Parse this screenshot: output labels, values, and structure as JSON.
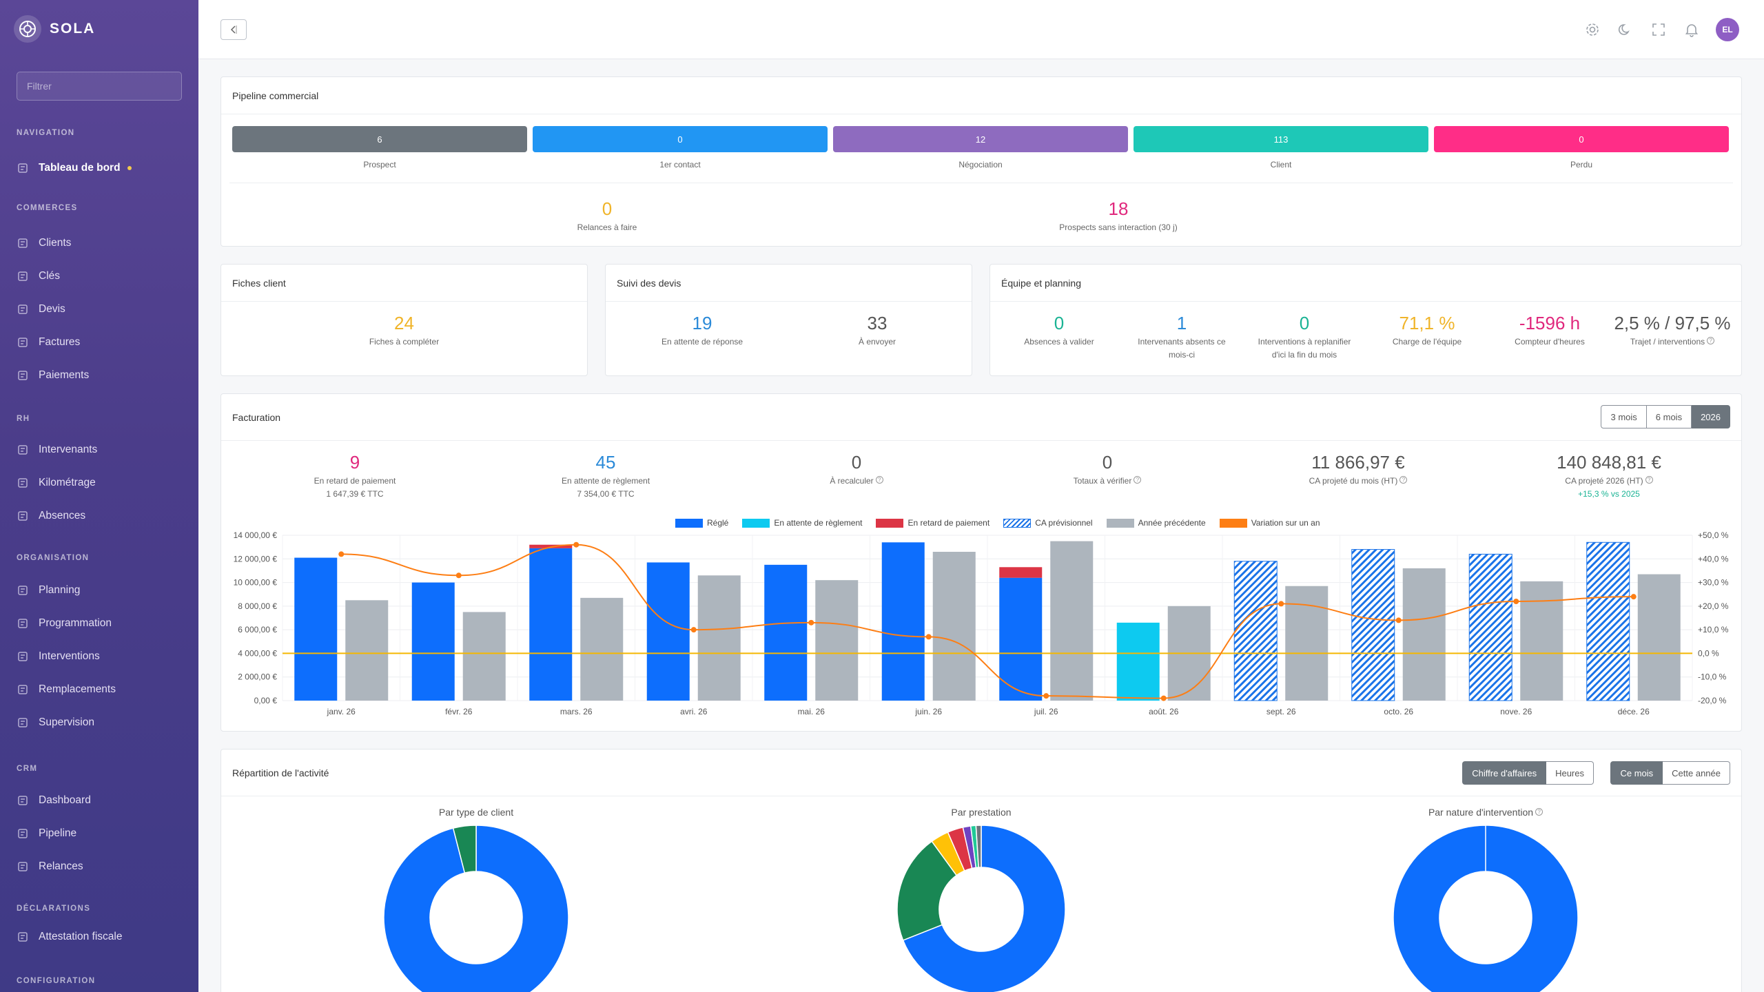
{
  "brand": {
    "name": "SOLA"
  },
  "sidebar": {
    "filter_placeholder": "Filtrer",
    "sections": [
      {
        "title": "NAVIGATION",
        "items": [
          {
            "label": "Tableau de bord",
            "icon": "dashboard-icon",
            "active": true
          }
        ]
      },
      {
        "title": "COMMERCES",
        "items": [
          {
            "label": "Clients",
            "icon": "user-icon"
          },
          {
            "label": "Clés",
            "icon": "key-icon"
          },
          {
            "label": "Devis",
            "icon": "document-icon"
          },
          {
            "label": "Factures",
            "icon": "invoice-icon"
          },
          {
            "label": "Paiements",
            "icon": "dollar-icon"
          }
        ]
      },
      {
        "title": "RH",
        "items": [
          {
            "label": "Intervenants",
            "icon": "users-icon"
          },
          {
            "label": "Kilométrage",
            "icon": "send-icon"
          },
          {
            "label": "Absences",
            "icon": "sun-icon"
          }
        ]
      },
      {
        "title": "ORGANISATION",
        "items": [
          {
            "label": "Planning",
            "icon": "calendar-icon"
          },
          {
            "label": "Programmation",
            "icon": "repeat-icon"
          },
          {
            "label": "Interventions",
            "icon": "clock-icon"
          },
          {
            "label": "Remplacements",
            "icon": "shuffle-icon"
          },
          {
            "label": "Supervision",
            "icon": "map-icon"
          }
        ]
      },
      {
        "title": "CRM",
        "items": [
          {
            "label": "Dashboard",
            "icon": "bar-chart-icon"
          },
          {
            "label": "Pipeline",
            "icon": "target-icon"
          },
          {
            "label": "Relances",
            "icon": "bell-icon"
          }
        ]
      },
      {
        "title": "DÉCLARATIONS",
        "items": [
          {
            "label": "Attestation fiscale",
            "icon": "award-icon"
          }
        ]
      },
      {
        "title": "CONFIGURATION",
        "items": []
      }
    ]
  },
  "topbar": {
    "avatar_initials": "EL"
  },
  "pipeline": {
    "title": "Pipeline commercial",
    "stages": [
      {
        "value": "6",
        "label": "Prospect",
        "color": "#6c757d"
      },
      {
        "value": "0",
        "label": "1er contact",
        "color": "#2196f3"
      },
      {
        "value": "12",
        "label": "Négociation",
        "color": "#8e6bbf"
      },
      {
        "value": "113",
        "label": "Client",
        "color": "#1ec8b7"
      },
      {
        "value": "0",
        "label": "Perdu",
        "color": "#ff2d87"
      }
    ],
    "stats": [
      {
        "value": "0",
        "label": "Relances à faire",
        "color": "#f0b429"
      },
      {
        "value": "18",
        "label": "Prospects sans interaction (30 j)",
        "color": "#e0287d"
      }
    ]
  },
  "fiches": {
    "title": "Fiches client",
    "value": "24",
    "label": "Fiches à compléter",
    "color": "#f0b429"
  },
  "devis": {
    "title": "Suivi des devis",
    "stats": [
      {
        "value": "19",
        "label": "En attente de réponse",
        "color": "#2b8ad8"
      },
      {
        "value": "33",
        "label": "À envoyer",
        "color": "#555"
      }
    ]
  },
  "equipe": {
    "title": "Équipe et planning",
    "stats": [
      {
        "value": "0",
        "label1": "Absences à valider",
        "label2": "",
        "color": "#1ab394"
      },
      {
        "value": "1",
        "label1": "Intervenants absents ce",
        "label2": "mois-ci",
        "color": "#2b8ad8"
      },
      {
        "value": "0",
        "label1": "Interventions à replanifier",
        "label2": "d'ici la fin du mois",
        "color": "#1ab394"
      },
      {
        "value": "71,1 %",
        "label1": "Charge de l'équipe",
        "label2": "",
        "color": "#f0b429"
      },
      {
        "value": "-1596 h",
        "label1": "Compteur d'heures",
        "label2": "",
        "color": "#e0287d"
      },
      {
        "value": "2,5 % / 97,5 %",
        "label1": "Trajet / interventions",
        "label2": "",
        "color": "#555"
      }
    ]
  },
  "facturation": {
    "title": "Facturation",
    "periods": [
      "3 mois",
      "6 mois",
      "2026"
    ],
    "active_period": "2026",
    "stats": [
      {
        "value": "9",
        "label": "En retard de paiement",
        "sub": "1 647,39 € TTC",
        "color": "#e0287d",
        "sub_color": "#666"
      },
      {
        "value": "45",
        "label": "En attente de règlement",
        "sub": "7 354,00 € TTC",
        "color": "#2b8ad8",
        "sub_color": "#666"
      },
      {
        "value": "0",
        "label": "À recalculer",
        "sub": "",
        "color": "#555",
        "sub_color": "#666"
      },
      {
        "value": "0",
        "label": "Totaux à vérifier",
        "sub": "",
        "color": "#555",
        "sub_color": "#666"
      },
      {
        "value": "11 866,97 €",
        "label": "CA projeté du mois (HT)",
        "sub": "",
        "color": "#555",
        "sub_color": "#666"
      },
      {
        "value": "140 848,81 €",
        "label": "CA projeté 2026 (HT)",
        "sub": "+15,3 % vs 2025",
        "color": "#555",
        "sub_color": "#1ab394"
      }
    ]
  },
  "chart_data": {
    "type": "bar",
    "categories": [
      "janv. 26",
      "févr. 26",
      "mars. 26",
      "avri. 26",
      "mai. 26",
      "juin. 26",
      "juil. 26",
      "août. 26",
      "sept. 26",
      "octo. 26",
      "nove. 26",
      "déce. 26"
    ],
    "series": [
      {
        "name": "Réglé",
        "color": "#0d6efd",
        "values": [
          12100,
          10000,
          12900,
          11700,
          11500,
          13400,
          10400,
          0,
          0,
          0,
          0,
          0
        ]
      },
      {
        "name": "En attente de règlement",
        "color": "#0dcaf0",
        "values": [
          0,
          0,
          0,
          0,
          0,
          0,
          0,
          6600,
          0,
          0,
          0,
          0
        ]
      },
      {
        "name": "En retard de paiement",
        "color": "#dc3545",
        "values": [
          0,
          0,
          300,
          0,
          0,
          0,
          900,
          0,
          0,
          0,
          0,
          0
        ]
      },
      {
        "name": "CA prévisionnel",
        "color": "#1a73e8",
        "values": [
          0,
          0,
          0,
          0,
          0,
          0,
          0,
          0,
          11800,
          12800,
          12400,
          13400
        ]
      },
      {
        "name": "Année précédente",
        "color": "#adb5bd",
        "values": [
          8500,
          7500,
          8700,
          10600,
          10200,
          12600,
          13500,
          8000,
          9700,
          11200,
          10100,
          10700
        ]
      },
      {
        "name": "Variation sur un an",
        "color": "#fd7e14",
        "axis": "right",
        "values": [
          42,
          33,
          46,
          10,
          13,
          7,
          -18,
          -19,
          21,
          14,
          22,
          24
        ]
      }
    ],
    "y_left": {
      "min": 0,
      "max": 14000,
      "ticks": [
        "0,00 €",
        "2 000,00 €",
        "4 000,00 €",
        "6 000,00 €",
        "8 000,00 €",
        "10 000,00 €",
        "12 000,00 €",
        "14 000,00 €"
      ]
    },
    "y_right": {
      "min": -20,
      "max": 50,
      "ticks": [
        "-20,0 %",
        "-10,0 %",
        "0,0 %",
        "+10,0 %",
        "+20,0 %",
        "+30,0 %",
        "+40,0 %",
        "+50,0 %"
      ]
    },
    "reference_line": {
      "value": 4000,
      "color": "#f5b700"
    },
    "grid": true,
    "legend_position": "top"
  },
  "repartition": {
    "title": "Répartition de l'activité",
    "toggle1": [
      "Chiffre d'affaires",
      "Heures"
    ],
    "toggle1_active": "Chiffre d'affaires",
    "toggle2": [
      "Ce mois",
      "Cette année"
    ],
    "toggle2_active": "Ce mois",
    "donuts": [
      {
        "title": "Par type de client",
        "slices": [
          {
            "value": 96,
            "color": "#0d6efd"
          },
          {
            "value": 4,
            "color": "#198754"
          }
        ]
      },
      {
        "title": "Par prestation",
        "slices": [
          {
            "value": 69,
            "color": "#0d6efd"
          },
          {
            "value": 21,
            "color": "#198754"
          },
          {
            "value": 3.5,
            "color": "#ffc107"
          },
          {
            "value": 3,
            "color": "#dc3545"
          },
          {
            "value": 1.5,
            "color": "#6f42c1"
          },
          {
            "value": 1,
            "color": "#20c997"
          },
          {
            "value": 1,
            "color": "#6c757d"
          }
        ]
      },
      {
        "title": "Par nature d'intervention",
        "slices": [
          {
            "value": 100,
            "color": "#0d6efd"
          }
        ]
      }
    ]
  }
}
